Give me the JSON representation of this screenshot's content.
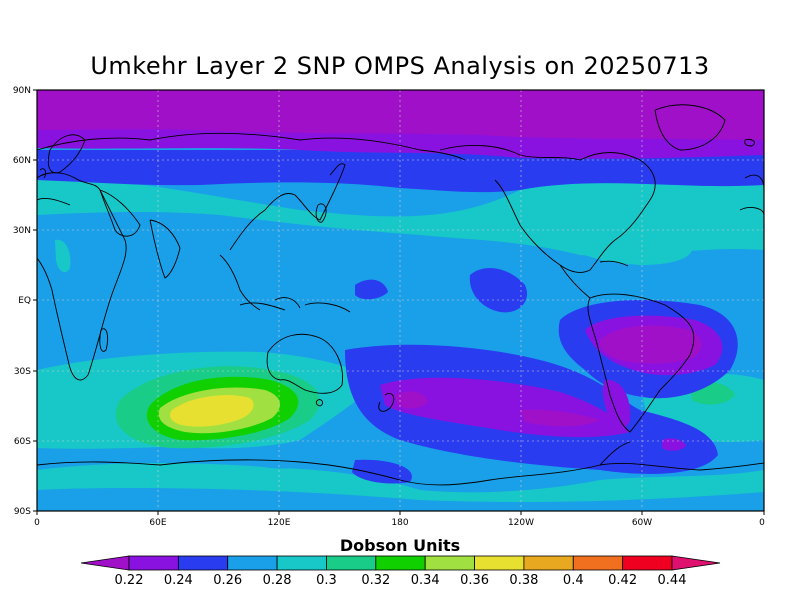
{
  "title": "Umkehr Layer 2 SNP OMPS Analysis on 20250713",
  "colorbar": {
    "title": "Dobson Units",
    "ticks": [
      "0.22",
      "0.24",
      "0.26",
      "0.28",
      "0.3",
      "0.32",
      "0.34",
      "0.36",
      "0.38",
      "0.4",
      "0.42",
      "0.44"
    ],
    "colors": [
      "#a010c8",
      "#8a12e0",
      "#2a3cf0",
      "#1aa0e8",
      "#18c8c8",
      "#19cc88",
      "#10d000",
      "#a0e040",
      "#e8e030",
      "#e8a820",
      "#f07020",
      "#f00020",
      "#e01070"
    ]
  },
  "map": {
    "lat_labels": [
      "90N",
      "60N",
      "30N",
      "EQ",
      "30S",
      "60S",
      "90S"
    ],
    "lon_labels": [
      "0",
      "60E",
      "120E",
      "180",
      "120W",
      "60W",
      "0"
    ]
  }
}
